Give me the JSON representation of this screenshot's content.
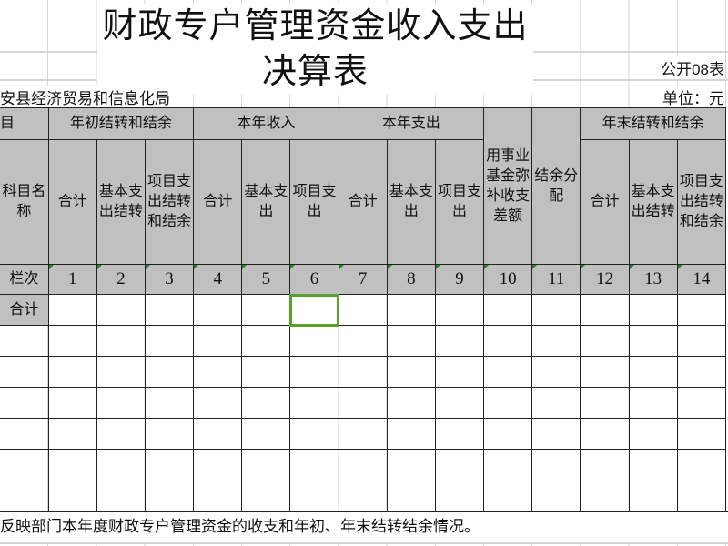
{
  "sheet": {
    "title": "财政专户管理资金收入支出决算表",
    "form_code": "公开08表",
    "department": "安县经济贸易和信息化局",
    "unit": "单位：元",
    "footer_note": "反映部门本年度财政专户管理资金的收支和年初、年末结转结余情况。"
  },
  "header": {
    "col0_top": "目",
    "col0_name": "科目名称",
    "groups": {
      "opening": "年初结转和结余",
      "income": "本年收入",
      "expense": "本年支出",
      "fund_offset": "用事业基金弥补收支差额",
      "surplus_dist": "结余分配",
      "closing": "年末结转和结余"
    },
    "sub": {
      "total": "合计",
      "basic_carry": "基本支出结转",
      "project_carry": "项目支出结转和结余",
      "basic_exp": "基本支出",
      "project_exp": "项目支出"
    },
    "index_label": "栏次",
    "index": [
      "1",
      "2",
      "3",
      "4",
      "5",
      "6",
      "7",
      "8",
      "9",
      "10",
      "11",
      "12",
      "13",
      "14"
    ]
  },
  "rows": [
    {
      "label": "合计"
    },
    {
      "label": ""
    },
    {
      "label": ""
    },
    {
      "label": ""
    },
    {
      "label": ""
    },
    {
      "label": ""
    },
    {
      "label": ""
    }
  ],
  "selection": {
    "row": 1,
    "column": 6,
    "color": "#5aa02c"
  },
  "colors": {
    "header_fill": "#c0c0c0",
    "grid": "#d6d6d6",
    "border": "#222222"
  }
}
